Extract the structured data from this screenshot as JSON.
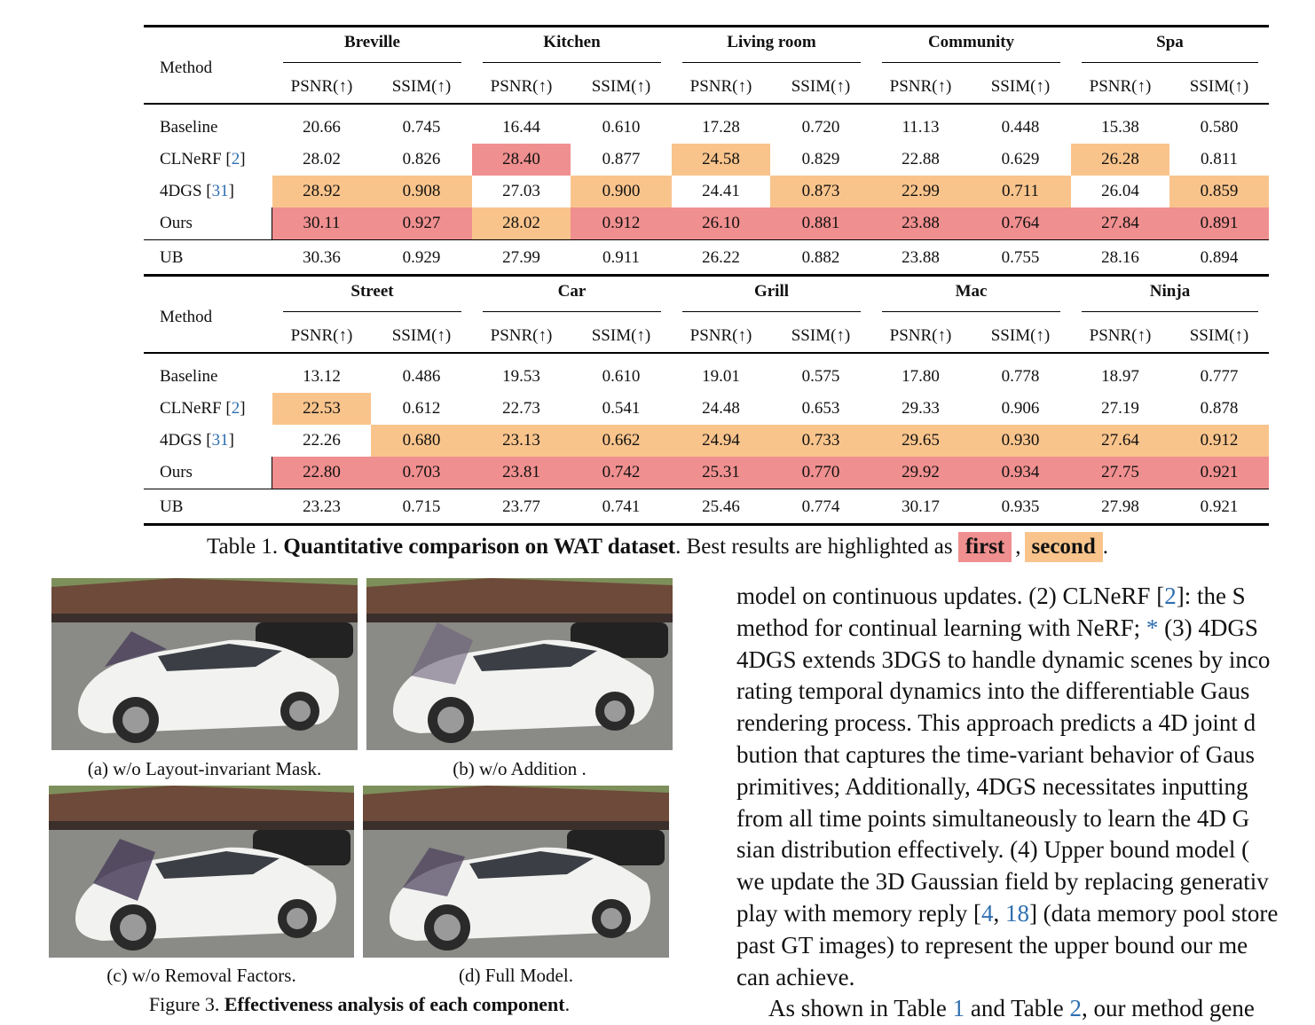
{
  "table": {
    "method_header": "Method",
    "metric_headers": [
      "PSNR(↑)",
      "SSIM(↑)"
    ],
    "top": {
      "scenes": [
        "Breville",
        "Kitchen",
        "Living room",
        "Community",
        "Spa"
      ],
      "rows": [
        {
          "method": "Baseline",
          "cite": "",
          "values": [
            "20.66",
            "0.745",
            "16.44",
            "0.610",
            "17.28",
            "0.720",
            "11.13",
            "0.448",
            "15.38",
            "0.580"
          ],
          "marks": [
            "",
            "",
            "",
            "",
            "",
            "",
            "",
            "",
            "",
            ""
          ]
        },
        {
          "method": "CLNeRF [",
          "cite": "2",
          "close": "]",
          "values": [
            "28.02",
            "0.826",
            "28.40",
            "0.877",
            "24.58",
            "0.829",
            "22.88",
            "0.629",
            "26.28",
            "0.811"
          ],
          "marks": [
            "",
            "",
            "first",
            "",
            "second",
            "",
            "",
            "",
            "second",
            ""
          ]
        },
        {
          "method": "4DGS [",
          "cite": "31",
          "close": "]",
          "values": [
            "28.92",
            "0.908",
            "27.03",
            "0.900",
            "24.41",
            "0.873",
            "22.99",
            "0.711",
            "26.04",
            "0.859"
          ],
          "marks": [
            "second",
            "second",
            "",
            "second",
            "",
            "second",
            "second",
            "second",
            "",
            "second"
          ]
        },
        {
          "method": "Ours",
          "cite": "",
          "values": [
            "30.11",
            "0.927",
            "28.02",
            "0.912",
            "26.10",
            "0.881",
            "23.88",
            "0.764",
            "27.84",
            "0.891"
          ],
          "marks": [
            "first",
            "first",
            "second",
            "first",
            "first",
            "first",
            "first",
            "first",
            "first",
            "first"
          ]
        }
      ],
      "ub": {
        "method": "UB",
        "values": [
          "30.36",
          "0.929",
          "27.99",
          "0.911",
          "26.22",
          "0.882",
          "23.88",
          "0.755",
          "28.16",
          "0.894"
        ]
      }
    },
    "bottom": {
      "scenes": [
        "Street",
        "Car",
        "Grill",
        "Mac",
        "Ninja"
      ],
      "rows": [
        {
          "method": "Baseline",
          "cite": "",
          "values": [
            "13.12",
            "0.486",
            "19.53",
            "0.610",
            "19.01",
            "0.575",
            "17.80",
            "0.778",
            "18.97",
            "0.777"
          ],
          "marks": [
            "",
            "",
            "",
            "",
            "",
            "",
            "",
            "",
            "",
            ""
          ]
        },
        {
          "method": "CLNeRF [",
          "cite": "2",
          "close": "]",
          "values": [
            "22.53",
            "0.612",
            "22.73",
            "0.541",
            "24.48",
            "0.653",
            "29.33",
            "0.906",
            "27.19",
            "0.878"
          ],
          "marks": [
            "second",
            "",
            "",
            "",
            "",
            "",
            "",
            "",
            "",
            ""
          ]
        },
        {
          "method": "4DGS [",
          "cite": "31",
          "close": "]",
          "values": [
            "22.26",
            "0.680",
            "23.13",
            "0.662",
            "24.94",
            "0.733",
            "29.65",
            "0.930",
            "27.64",
            "0.912"
          ],
          "marks": [
            "",
            "second",
            "second",
            "second",
            "second",
            "second",
            "second",
            "second",
            "second",
            "second"
          ]
        },
        {
          "method": "Ours",
          "cite": "",
          "values": [
            "22.80",
            "0.703",
            "23.81",
            "0.742",
            "25.31",
            "0.770",
            "29.92",
            "0.934",
            "27.75",
            "0.921"
          ],
          "marks": [
            "first",
            "first",
            "first",
            "first",
            "first",
            "first",
            "first",
            "first",
            "first",
            "first"
          ]
        }
      ],
      "ub": {
        "method": "UB",
        "values": [
          "23.23",
          "0.715",
          "23.77",
          "0.741",
          "25.46",
          "0.774",
          "30.17",
          "0.935",
          "27.98",
          "0.921"
        ]
      }
    },
    "colors": {
      "first": "#f08f8f",
      "second": "#f9c48c"
    }
  },
  "table_caption": {
    "prefix": "Table 1. ",
    "bold": "Quantitative comparison on WAT dataset",
    "middle": ". Best results are highlighted as ",
    "first": "first",
    "comma": ",",
    "second": "second",
    "end": "."
  },
  "figure": {
    "captions": [
      "(a) w/o Layout-invariant Mask.",
      "(b) w/o Addition .",
      "(c) w/o Removal Factors.",
      "(d) Full Model."
    ],
    "caption_prefix": "Figure 3. ",
    "caption_bold": "Effectiveness analysis of each component",
    "caption_end": "."
  },
  "body_lines": [
    "model on continuous updates. (2) CLNeRF [2]: the S",
    "method for continual learning with NeRF; * (3) 4DGS",
    "4DGS extends 3DGS to handle dynamic scenes by inco",
    "rating temporal dynamics into the differentiable Gaus",
    "rendering process. This approach predicts a 4D joint d",
    "bution that captures the time-variant behavior of Gaus",
    "primitives; Additionally, 4DGS necessitates inputting",
    "from all time points simultaneously to learn the 4D G",
    "sian distribution effectively. (4) Upper bound model (",
    "we update the 3D Gaussian field by replacing generativ",
    "play with memory reply [4, 18] (data memory pool store",
    "past GT images) to represent the upper bound our me",
    "can achieve.",
    "As shown in Table 1 and Table 2, our method gene"
  ]
}
